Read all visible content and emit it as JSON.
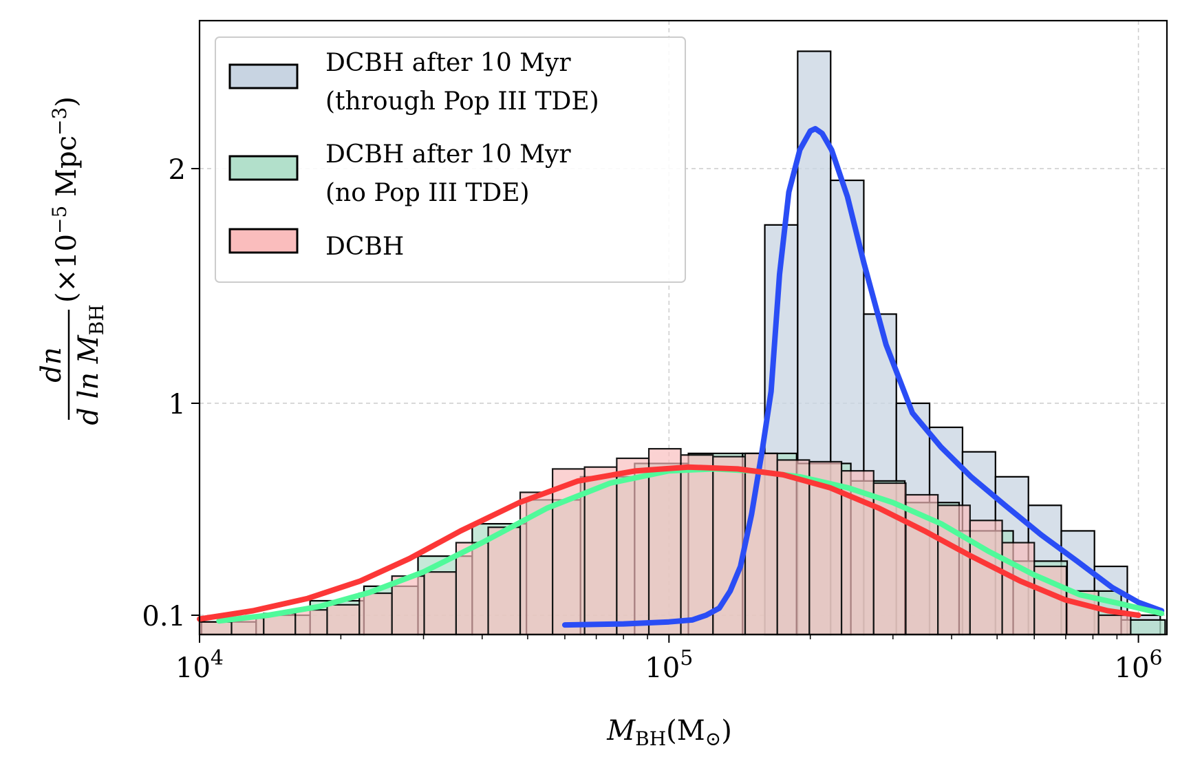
{
  "chart_data": {
    "type": "bar",
    "xscale": "log",
    "yscale": "symlog-like (0.1, 1, 2 ticks)",
    "xlim": [
      10000,
      1150000
    ],
    "ylim": [
      0.085,
      2.6
    ],
    "xlabel": {
      "main": "M",
      "sub": "BH",
      "unit": "(M",
      "unit_sub": "⊙",
      "unit_close": ")"
    },
    "ylabel": {
      "numerator": "dn",
      "denominator": "d ln M",
      "denominator_sub": "BH",
      "scale": "(×10",
      "scale_exp": "−5",
      "scale_unit": " Mpc",
      "scale_unit_exp": "−3",
      "scale_close": ")"
    },
    "x_ticks": [
      {
        "value": 10000,
        "base": "10",
        "exp": "4"
      },
      {
        "value": 100000,
        "base": "10",
        "exp": "5"
      },
      {
        "value": 1000000,
        "base": "10",
        "exp": "6"
      }
    ],
    "y_ticks": [
      {
        "value": 0.1,
        "label": "0.1"
      },
      {
        "value": 1,
        "label": "1"
      },
      {
        "value": 2,
        "label": "2"
      }
    ],
    "grid": true,
    "legend_position": "top-left",
    "legend": [
      {
        "lines": [
          "DCBH after 10 Myr",
          "(through Pop III TDE)"
        ],
        "color": "#c8d4e2"
      },
      {
        "lines": [
          "DCBH after 10 Myr",
          "(no Pop III TDE)"
        ],
        "color": "#b2e0cb"
      },
      {
        "lines": [
          "DCBH"
        ],
        "color": "#fabdbd"
      }
    ],
    "histograms": [
      {
        "name": "DCBH after 10 Myr (through Pop III TDE)",
        "color": "#c8d4e2",
        "edges": [
          160000,
          188000,
          221000,
          260000,
          305000,
          359000,
          422000,
          496000,
          583000,
          685000,
          806000,
          947000,
          1113000
        ],
        "values": [
          1.76,
          2.5,
          1.95,
          1.38,
          1.0,
          0.77,
          0.59,
          0.45,
          0.33,
          0.25,
          0.17,
          0.1
        ]
      },
      {
        "name": "DCBH after 10 Myr (no Pop III TDE)",
        "color": "#b2e0cb",
        "edges": [
          10100,
          13200,
          17200,
          22400,
          29200,
          38100,
          49700,
          64800,
          84500,
          110000,
          143500,
          187000,
          244000,
          318000,
          415000,
          541000,
          705000,
          919000,
          1140000
        ],
        "values": [
          0.093,
          0.1,
          0.117,
          0.137,
          0.19,
          0.27,
          0.35,
          0.45,
          0.52,
          0.58,
          0.58,
          0.52,
          0.43,
          0.34,
          0.25,
          0.18,
          0.13,
          0.095
        ]
      },
      {
        "name": "DCBH",
        "color": "#fabdbd",
        "edges": [
          10000,
          11700,
          13700,
          16000,
          18700,
          21900,
          25700,
          30100,
          35200,
          41200,
          48200,
          56500,
          66100,
          77400,
          90600,
          106000,
          124100,
          145300,
          170100,
          199100,
          233100,
          272900,
          319500,
          374000,
          437800,
          512600,
          600100,
          702500,
          822400,
          962800
        ],
        "values": [
          0.093,
          0.097,
          0.102,
          0.106,
          0.112,
          0.127,
          0.153,
          0.16,
          0.22,
          0.26,
          0.38,
          0.49,
          0.5,
          0.55,
          0.61,
          0.57,
          0.56,
          0.58,
          0.54,
          0.53,
          0.48,
          0.42,
          0.37,
          0.33,
          0.28,
          0.22,
          0.17,
          0.13,
          0.1
        ]
      }
    ],
    "series": [
      {
        "name": "DCBH after 10 Myr (through Pop III TDE)",
        "color": "#2a4df5",
        "x": [
          60000,
          80000,
          100000,
          112000,
          120000,
          128000,
          135000,
          142000,
          150000,
          158000,
          165000,
          172000,
          180000,
          190000,
          200000,
          205000,
          212000,
          222000,
          240000,
          260000,
          290000,
          330000,
          380000,
          440000,
          520000,
          620000,
          740000,
          880000,
          1000000,
          1120000
        ],
        "y": [
          0.09,
          0.091,
          0.093,
          0.095,
          0.1,
          0.108,
          0.13,
          0.17,
          0.3,
          0.6,
          1.05,
          1.55,
          1.9,
          2.08,
          2.16,
          2.17,
          2.15,
          2.08,
          1.88,
          1.6,
          1.25,
          0.9,
          0.62,
          0.45,
          0.33,
          0.24,
          0.18,
          0.135,
          0.115,
          0.105
        ]
      },
      {
        "name": "DCBH after 10 Myr (no Pop III TDE)",
        "color": "#50fa9a",
        "x": [
          11000,
          14000,
          18000,
          23000,
          30000,
          40000,
          55000,
          75000,
          100000,
          125000,
          150000,
          190000,
          240000,
          300000,
          380000,
          480000,
          600000,
          750000,
          920000,
          1120000
        ],
        "y": [
          0.094,
          0.1,
          0.11,
          0.128,
          0.16,
          0.22,
          0.32,
          0.42,
          0.48,
          0.49,
          0.48,
          0.45,
          0.4,
          0.34,
          0.27,
          0.2,
          0.155,
          0.125,
          0.113,
          0.102
        ]
      },
      {
        "name": "DCBH",
        "color": "#fc3737",
        "x": [
          10000,
          13000,
          17000,
          22000,
          28000,
          36000,
          48000,
          64000,
          85000,
          110000,
          140000,
          175000,
          220000,
          280000,
          350000,
          440000,
          560000,
          700000,
          860000,
          1000000
        ],
        "y": [
          0.096,
          0.105,
          0.12,
          0.145,
          0.185,
          0.25,
          0.34,
          0.43,
          0.48,
          0.5,
          0.49,
          0.46,
          0.4,
          0.32,
          0.25,
          0.19,
          0.145,
          0.118,
          0.105,
          0.1
        ]
      }
    ]
  }
}
